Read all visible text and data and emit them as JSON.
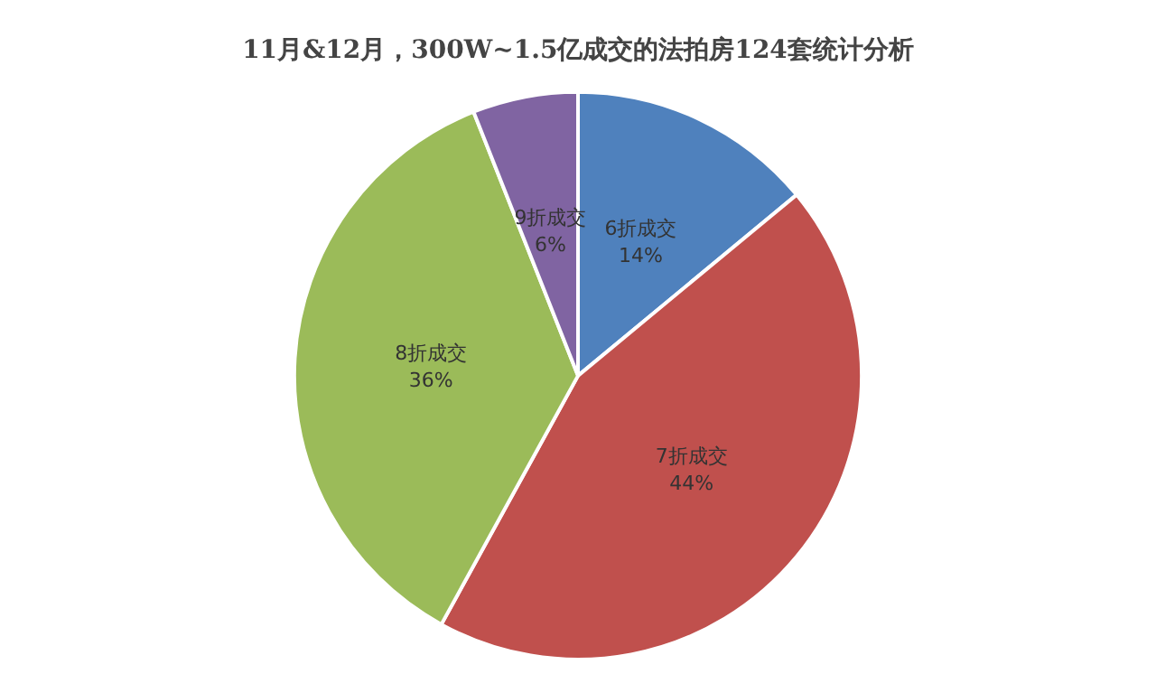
{
  "chart_data": {
    "type": "pie",
    "title": "11月&12月，300W~1.5亿成交的法拍房124套统计分析",
    "categories": [
      "6折成交",
      "7折成交",
      "8折成交",
      "9折成交"
    ],
    "values": [
      14,
      44,
      36,
      6
    ],
    "value_labels": [
      "14%",
      "44%",
      "36%",
      "6%"
    ],
    "colors": [
      "#4f81bd",
      "#c0504d",
      "#9bbb59",
      "#8064a2"
    ],
    "legend": false
  }
}
